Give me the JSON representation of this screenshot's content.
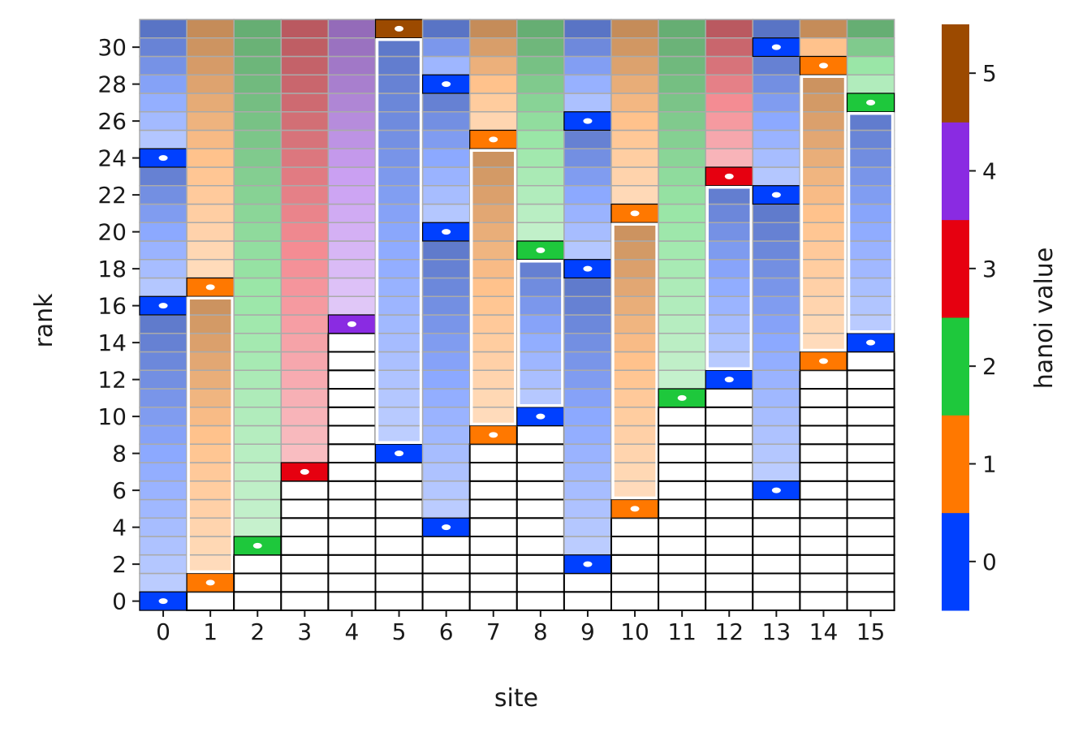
{
  "chart_data": {
    "type": "heatmap",
    "title": "",
    "xlabel": "site",
    "ylabel": "rank",
    "x_ticks": [
      "0",
      "1",
      "2",
      "3",
      "4",
      "5",
      "6",
      "7",
      "8",
      "9",
      "10",
      "11",
      "12",
      "13",
      "14",
      "15"
    ],
    "y_ticks": [
      "0",
      "2",
      "4",
      "6",
      "8",
      "10",
      "12",
      "14",
      "16",
      "18",
      "20",
      "22",
      "24",
      "26",
      "28",
      "30"
    ],
    "colorbar": {
      "label": "hanoi value",
      "ticks": [
        "0",
        "1",
        "2",
        "3",
        "4",
        "5"
      ],
      "colors": [
        "#0040ff",
        "#ff7800",
        "#1ec83c",
        "#e60010",
        "#8a2be2",
        "#9c4a00"
      ]
    },
    "rank_range": [
      0,
      31
    ],
    "sites": [
      {
        "site": 0,
        "marked_ranks": [
          0,
          16,
          24
        ],
        "marked_values": [
          0,
          0,
          0
        ],
        "column_start_rank": 0
      },
      {
        "site": 1,
        "marked_ranks": [
          1,
          17
        ],
        "marked_values": [
          1,
          1
        ],
        "column_start_rank": 1
      },
      {
        "site": 2,
        "marked_ranks": [
          3
        ],
        "marked_values": [
          2
        ],
        "column_start_rank": 3
      },
      {
        "site": 3,
        "marked_ranks": [
          7
        ],
        "marked_values": [
          3
        ],
        "column_start_rank": 7
      },
      {
        "site": 4,
        "marked_ranks": [
          15
        ],
        "marked_values": [
          4
        ],
        "column_start_rank": 15
      },
      {
        "site": 5,
        "marked_ranks": [
          8,
          31
        ],
        "marked_values": [
          0,
          5
        ],
        "column_start_rank": 8
      },
      {
        "site": 6,
        "marked_ranks": [
          4,
          20,
          28
        ],
        "marked_values": [
          0,
          0,
          0
        ],
        "column_start_rank": 4
      },
      {
        "site": 7,
        "marked_ranks": [
          9,
          25
        ],
        "marked_values": [
          1,
          1
        ],
        "column_start_rank": 9
      },
      {
        "site": 8,
        "marked_ranks": [
          10,
          19
        ],
        "marked_values": [
          0,
          2
        ],
        "column_start_rank": 10
      },
      {
        "site": 9,
        "marked_ranks": [
          2,
          18,
          26
        ],
        "marked_values": [
          0,
          0,
          0
        ],
        "column_start_rank": 2
      },
      {
        "site": 10,
        "marked_ranks": [
          5,
          21
        ],
        "marked_values": [
          1,
          1
        ],
        "column_start_rank": 5
      },
      {
        "site": 11,
        "marked_ranks": [
          11
        ],
        "marked_values": [
          2
        ],
        "column_start_rank": 11
      },
      {
        "site": 12,
        "marked_ranks": [
          12,
          23
        ],
        "marked_values": [
          0,
          3
        ],
        "column_start_rank": 12
      },
      {
        "site": 13,
        "marked_ranks": [
          6,
          22,
          30
        ],
        "marked_values": [
          0,
          0,
          0
        ],
        "column_start_rank": 6
      },
      {
        "site": 14,
        "marked_ranks": [
          13,
          29
        ],
        "marked_values": [
          1,
          1
        ],
        "column_start_rank": 13
      },
      {
        "site": 15,
        "marked_ranks": [
          14,
          27
        ],
        "marked_values": [
          0,
          2
        ],
        "column_start_rank": 14
      }
    ]
  }
}
